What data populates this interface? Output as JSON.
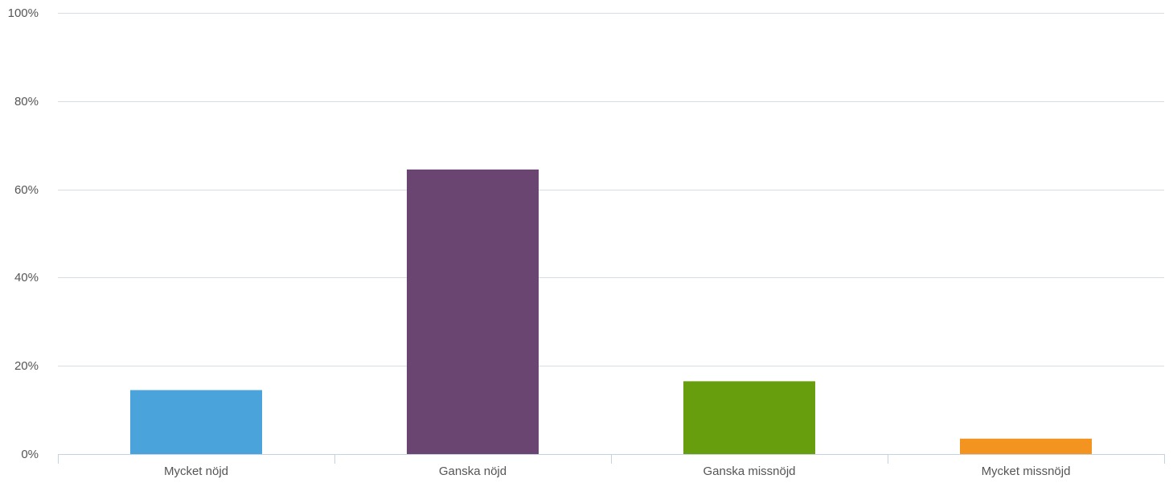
{
  "chart_data": {
    "type": "bar",
    "title": "",
    "xlabel": "",
    "ylabel": "",
    "categories": [
      "Mycket nöjd",
      "Ganska nöjd",
      "Ganska missnöjd",
      "Mycket missnöjd"
    ],
    "values": [
      14.5,
      64.5,
      16.5,
      3.5
    ],
    "colors": [
      "#4aa3da",
      "#6b4572",
      "#669e0d",
      "#f39421"
    ],
    "ylim": [
      0,
      100
    ],
    "yticks": [
      0,
      20,
      40,
      60,
      80,
      100
    ],
    "ytick_labels": [
      "0%",
      "20%",
      "40%",
      "60%",
      "80%",
      "100%"
    ],
    "grid": true,
    "legend": "none",
    "colors_ui": {
      "grid": "#d8dde3",
      "axis": "#c5d3e0",
      "text": "#555555"
    }
  }
}
